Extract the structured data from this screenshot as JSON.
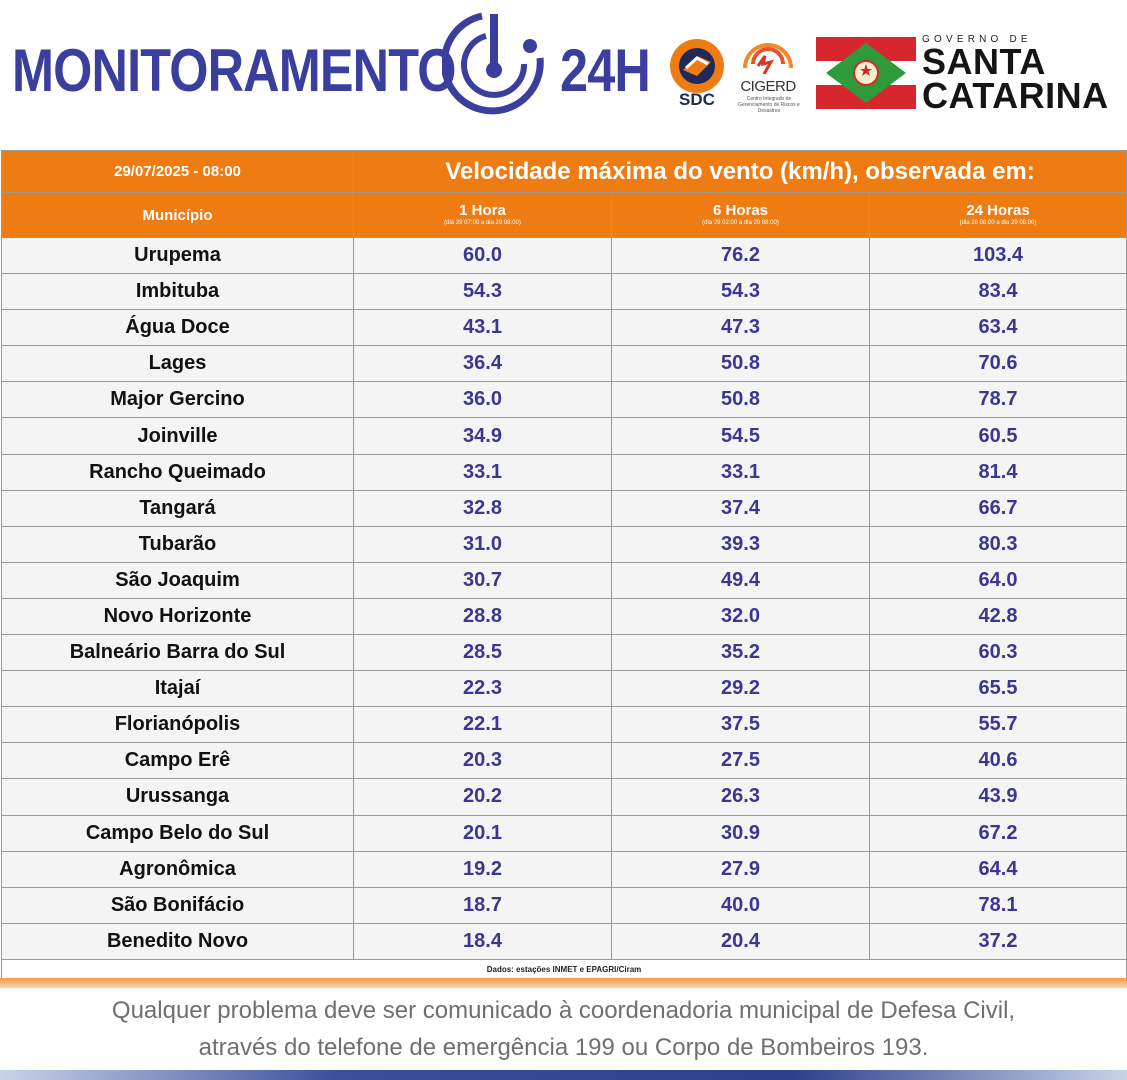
{
  "header": {
    "brand_part1": "MONITORAMENTO",
    "brand_part2": "24H",
    "brand_icon": "radar-logo-icon",
    "sdc_label": "SDC",
    "cigerd_label": "CIGERD",
    "cigerd_sub": "Centro Integrado de Gerenciamento de Riscos e Desastres",
    "gov_prefix": "GOVERNO DE",
    "gov_line1": "SANTA",
    "gov_line2": "CATARINA",
    "colors": {
      "brand": "#3a3f9e",
      "orange": "#ee7c12"
    }
  },
  "table": {
    "date": "29/07/2025 - 08:00",
    "title": "Velocidade máxima do vento (km/h), observada em:",
    "col_municipio": "Município",
    "periods": [
      {
        "label": "1 Hora",
        "range": "(dia 29 07:00 a dia 29 08:00)"
      },
      {
        "label": "6 Horas",
        "range": "(dia 29 02:00 a dia 29 08:00)"
      },
      {
        "label": "24 Horas",
        "range": "(dia 28 08:00 a dia 29 08:00)"
      }
    ],
    "rows": [
      {
        "name": "Urupema",
        "h1": "60.0",
        "h6": "76.2",
        "h24": "103.4"
      },
      {
        "name": "Imbituba",
        "h1": "54.3",
        "h6": "54.3",
        "h24": "83.4"
      },
      {
        "name": "Água Doce",
        "h1": "43.1",
        "h6": "47.3",
        "h24": "63.4"
      },
      {
        "name": "Lages",
        "h1": "36.4",
        "h6": "50.8",
        "h24": "70.6"
      },
      {
        "name": "Major Gercino",
        "h1": "36.0",
        "h6": "50.8",
        "h24": "78.7"
      },
      {
        "name": "Joinville",
        "h1": "34.9",
        "h6": "54.5",
        "h24": "60.5"
      },
      {
        "name": "Rancho Queimado",
        "h1": "33.1",
        "h6": "33.1",
        "h24": "81.4"
      },
      {
        "name": "Tangará",
        "h1": "32.8",
        "h6": "37.4",
        "h24": "66.7"
      },
      {
        "name": "Tubarão",
        "h1": "31.0",
        "h6": "39.3",
        "h24": "80.3"
      },
      {
        "name": "São Joaquim",
        "h1": "30.7",
        "h6": "49.4",
        "h24": "64.0"
      },
      {
        "name": "Novo Horizonte",
        "h1": "28.8",
        "h6": "32.0",
        "h24": "42.8"
      },
      {
        "name": "Balneário Barra do Sul",
        "h1": "28.5",
        "h6": "35.2",
        "h24": "60.3"
      },
      {
        "name": "Itajaí",
        "h1": "22.3",
        "h6": "29.2",
        "h24": "65.5"
      },
      {
        "name": "Florianópolis",
        "h1": "22.1",
        "h6": "37.5",
        "h24": "55.7"
      },
      {
        "name": "Campo Erê",
        "h1": "20.3",
        "h6": "27.5",
        "h24": "40.6"
      },
      {
        "name": "Urussanga",
        "h1": "20.2",
        "h6": "26.3",
        "h24": "43.9"
      },
      {
        "name": "Campo Belo do Sul",
        "h1": "20.1",
        "h6": "30.9",
        "h24": "67.2"
      },
      {
        "name": "Agronômica",
        "h1": "19.2",
        "h6": "27.9",
        "h24": "64.4"
      },
      {
        "name": "São Bonifácio",
        "h1": "18.7",
        "h6": "40.0",
        "h24": "78.1"
      },
      {
        "name": "Benedito Novo",
        "h1": "18.4",
        "h6": "20.4",
        "h24": "37.2"
      }
    ],
    "source": "Dados: estações INMET e EPAGRI/Ciram"
  },
  "footer": {
    "line1": "Qualquer problema deve ser comunicado à coordenadoria municipal de Defesa Civil,",
    "line2": "através do telefone de emergência 199 ou Corpo de Bombeiros 193."
  }
}
